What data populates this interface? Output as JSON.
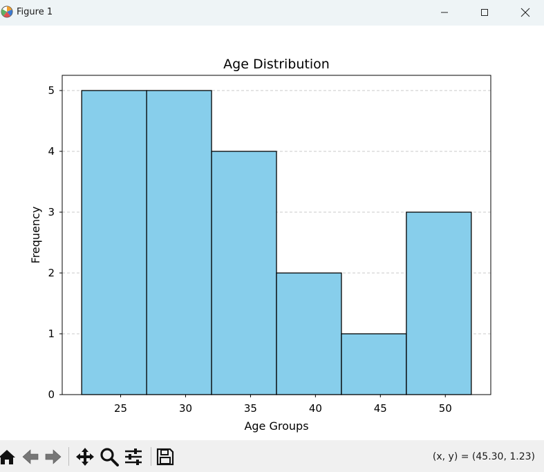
{
  "window": {
    "title": "Figure 1",
    "app_icon": "matplotlib-logo-icon",
    "controls": [
      "minimize-icon",
      "maximize-icon",
      "close-icon"
    ]
  },
  "toolbar": {
    "tools": [
      "home-icon",
      "back-arrow-icon",
      "forward-arrow-icon",
      "pan-move-icon",
      "zoom-magnifier-icon",
      "configure-subplots-icon",
      "save-floppy-icon"
    ],
    "coords_text": "(x, y) = (45.30, 1.23)"
  },
  "colors": {
    "bar_fill": "#87ceeb",
    "bar_edge": "#000000",
    "grid": "#c8c8c8",
    "titlebar": "#eef4f6",
    "toolbar": "#f0f0f0"
  },
  "chart_data": {
    "type": "bar",
    "title": "Age Distribution",
    "xlabel": "Age Groups",
    "ylabel": "Frequency",
    "bin_edges": [
      22,
      27,
      32,
      37,
      42,
      47,
      52
    ],
    "values": [
      5,
      5,
      4,
      2,
      1,
      3
    ],
    "xlim": [
      20.5,
      53.5
    ],
    "ylim": [
      0,
      5.25
    ],
    "xticks": [
      25,
      30,
      35,
      40,
      45,
      50
    ],
    "yticks": [
      0,
      1,
      2,
      3,
      4,
      5
    ],
    "grid": "y-dashed",
    "legend": "none"
  }
}
